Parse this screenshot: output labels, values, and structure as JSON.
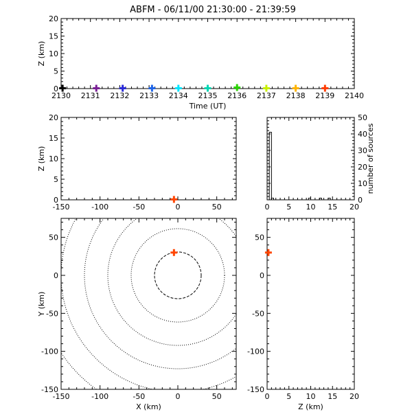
{
  "title": "ABFM - 06/11/00 21:30:00 - 21:39:59",
  "chart_data": [
    {
      "id": "time-height",
      "type": "scatter",
      "xlabel": "Time (UT)",
      "ylabel": "Z (km)",
      "xlim": [
        2130,
        2140
      ],
      "ylim": [
        0,
        20
      ],
      "xticks": [
        2130,
        2131,
        2132,
        2133,
        2134,
        2135,
        2136,
        2137,
        2138,
        2139,
        2140
      ],
      "yticks": [
        0,
        5,
        10,
        15,
        20
      ],
      "points": [
        {
          "x": 2130.05,
          "y": 0.1,
          "color": "#000000"
        },
        {
          "x": 2131.2,
          "y": 0.1,
          "color": "#7a1f96"
        },
        {
          "x": 2132.1,
          "y": 0.1,
          "color": "#2a2ad6"
        },
        {
          "x": 2133.1,
          "y": 0.1,
          "color": "#1e64e6"
        },
        {
          "x": 2134.0,
          "y": 0.1,
          "color": "#00e6ff"
        },
        {
          "x": 2135.0,
          "y": 0.1,
          "color": "#00d7b4"
        },
        {
          "x": 2136.0,
          "y": 0.3,
          "color": "#2ad200"
        },
        {
          "x": 2137.0,
          "y": 0.1,
          "color": "#c8f000"
        },
        {
          "x": 2138.0,
          "y": 0.1,
          "color": "#ffb400"
        },
        {
          "x": 2139.0,
          "y": 0.1,
          "color": "#ff3c00"
        }
      ]
    },
    {
      "id": "x-z",
      "type": "scatter",
      "xlabel": "",
      "ylabel": "Z (km)",
      "xlim": [
        -150,
        75
      ],
      "ylim": [
        0,
        20
      ],
      "xticks": [
        -150,
        -100,
        -50,
        0,
        50
      ],
      "yticks": [
        0,
        5,
        10,
        15,
        20
      ],
      "points": [
        {
          "x": -5,
          "y": 0.1,
          "color": "#ff4500"
        }
      ]
    },
    {
      "id": "histogram",
      "type": "bar",
      "xlabel": "",
      "ylabel": "number of sources",
      "xlim": [
        0,
        20
      ],
      "ylim": [
        0,
        50
      ],
      "xticks": [
        0,
        5,
        10,
        15,
        20
      ],
      "yticks": [
        0,
        10,
        20,
        30,
        40,
        50
      ],
      "bin_width": 0.5,
      "bins": [
        {
          "x": 0.5,
          "count": 41
        },
        {
          "x": 1.0,
          "count": 1
        },
        {
          "x": 9.5,
          "count": 1
        },
        {
          "x": 12.0,
          "count": 1
        },
        {
          "x": 14.0,
          "count": 1
        }
      ]
    },
    {
      "id": "plan-view",
      "type": "scatter",
      "xlabel": "X (km)",
      "ylabel": "Y (km)",
      "xlim": [
        -150,
        75
      ],
      "ylim": [
        -150,
        75
      ],
      "xticks": [
        -150,
        -100,
        -50,
        0,
        50
      ],
      "yticks": [
        -150,
        -100,
        -50,
        0,
        50
      ],
      "range_rings": {
        "center": [
          0,
          0
        ],
        "radii_km": [
          30,
          60,
          90,
          120,
          150,
          180
        ],
        "solid_radius_km": 30
      },
      "points": [
        {
          "x": -5,
          "y": 30,
          "color": "#ff4500"
        }
      ]
    },
    {
      "id": "z-y",
      "type": "scatter",
      "xlabel": "Z (km)",
      "ylabel": "",
      "xlim": [
        0,
        20
      ],
      "ylim": [
        -150,
        75
      ],
      "xticks": [
        0,
        5,
        10,
        15,
        20
      ],
      "yticks": [
        -150,
        -100,
        -50,
        0,
        50
      ],
      "points": [
        {
          "x": 0.3,
          "y": 30,
          "color": "#ff4500"
        }
      ]
    }
  ]
}
